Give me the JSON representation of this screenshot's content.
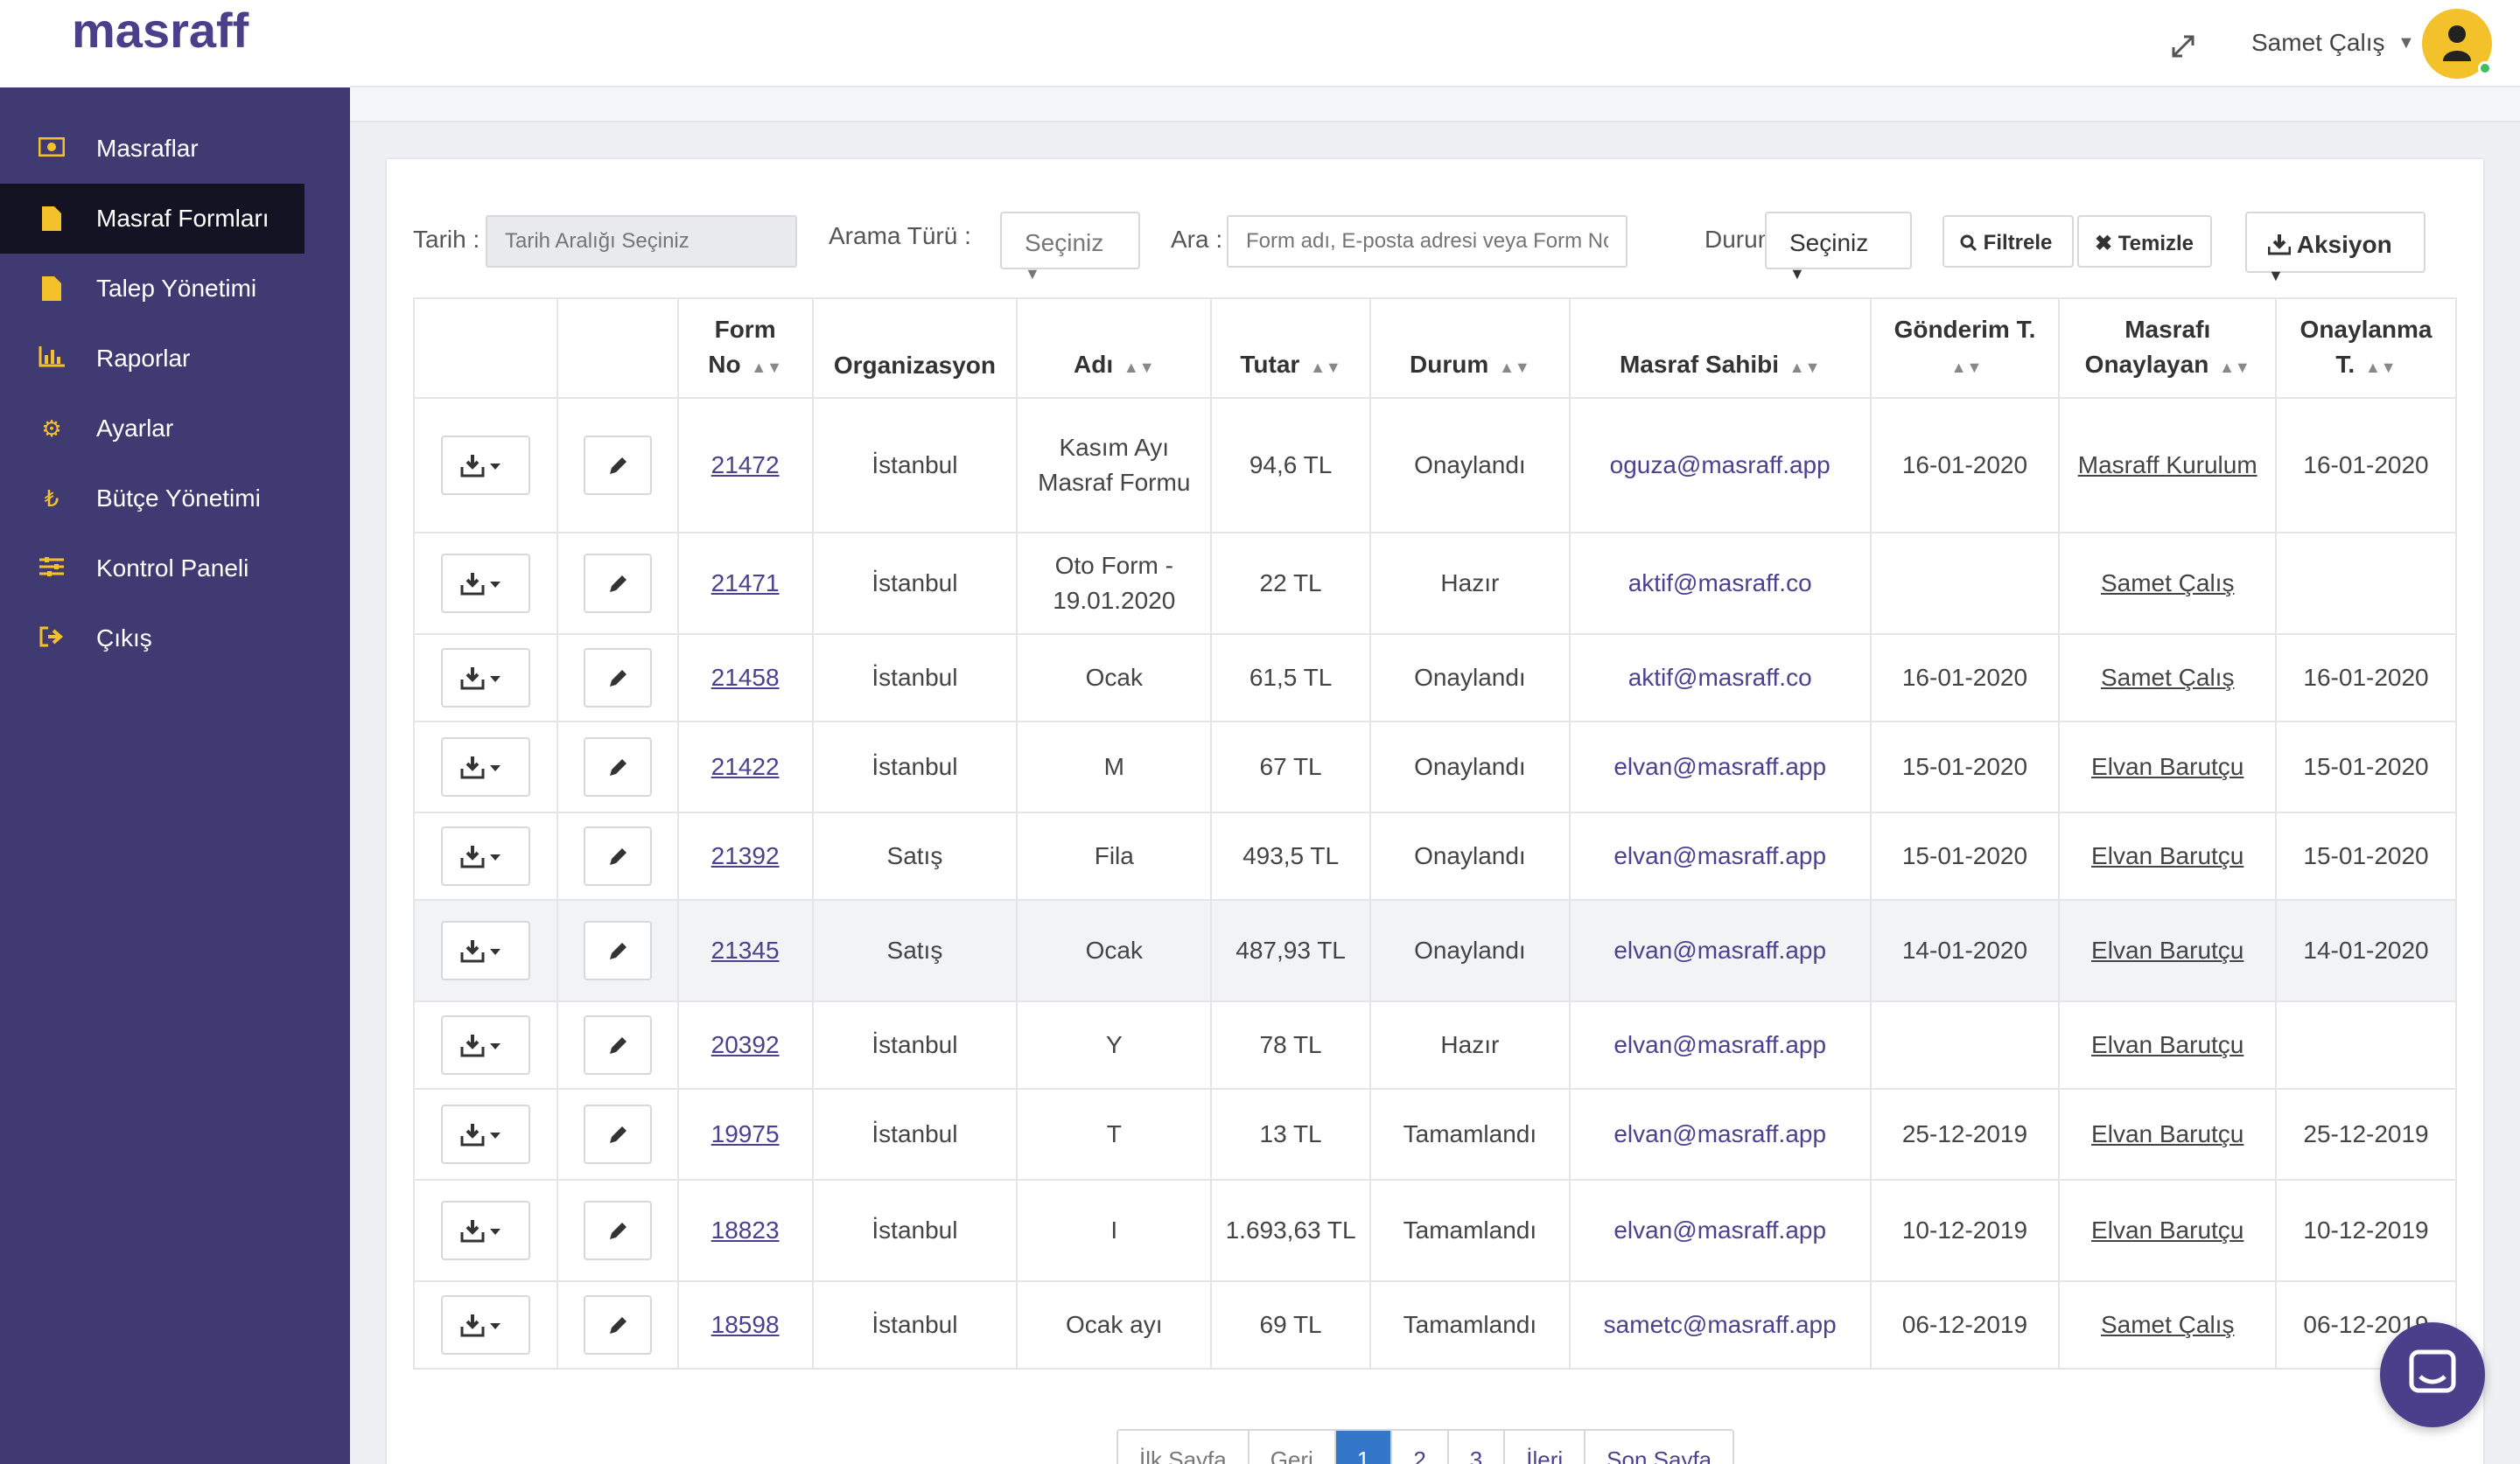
{
  "app": {
    "logo": "masraff"
  },
  "header": {
    "user_name": "Samet Çalış"
  },
  "sidebar": {
    "items": [
      {
        "label": "Masraflar",
        "icon": "money-icon"
      },
      {
        "label": "Masraf Formları",
        "icon": "file-icon",
        "active": true
      },
      {
        "label": "Talep Yönetimi",
        "icon": "file-icon"
      },
      {
        "label": "Raporlar",
        "icon": "bar-chart-icon"
      },
      {
        "label": "Ayarlar",
        "icon": "gear-icon"
      },
      {
        "label": "Bütçe Yönetimi",
        "icon": "lira-icon"
      },
      {
        "label": "Kontrol Paneli",
        "icon": "sliders-icon"
      },
      {
        "label": "Çıkış",
        "icon": "sign-out-icon"
      }
    ]
  },
  "filters": {
    "date_label": "Tarih :",
    "date_placeholder": "Tarih Aralığı Seçiniz",
    "search_type_label": "Arama Türü :",
    "search_type_value": "Seçiniz",
    "search_label": "Ara :",
    "search_placeholder": "Form adı, E-posta adresi veya Form No",
    "status_label": "Durumu :",
    "status_value": "Seçiniz",
    "filter_button": "Filtrele",
    "clear_button": "Temizle",
    "action_button": "Aksiyon"
  },
  "table": {
    "headers": {
      "form_no_1": "Form",
      "form_no_2": "No",
      "organization": "Organizasyon",
      "name": "Adı",
      "amount": "Tutar",
      "status": "Durum",
      "owner": "Masraf Sahibi",
      "sent_1": "Gönderim T.",
      "approver_1": "Masrafı",
      "approver_2": "Onaylayan",
      "approved_1": "Onaylanma",
      "approved_2": "T."
    },
    "rows": [
      {
        "form_no": "21472",
        "org": "İstanbul",
        "name": "Kasım Ayı Masraf Formu",
        "amount": "94,6 TL",
        "status": "Onaylandı",
        "owner": "oguza@masraff.app",
        "sent": "16-01-2020",
        "approver": "Masraff Kurulum",
        "approved": "16-01-2020"
      },
      {
        "form_no": "21471",
        "org": "İstanbul",
        "name": "Oto Form - 19.01.2020",
        "amount": "22 TL",
        "status": "Hazır",
        "owner": "aktif@masraff.co",
        "sent": "",
        "approver": "Samet Çalış",
        "approved": ""
      },
      {
        "form_no": "21458",
        "org": "İstanbul",
        "name": "Ocak",
        "amount": "61,5 TL",
        "status": "Onaylandı",
        "owner": "aktif@masraff.co",
        "sent": "16-01-2020",
        "approver": "Samet Çalış",
        "approved": "16-01-2020"
      },
      {
        "form_no": "21422",
        "org": "İstanbul",
        "name": "M",
        "amount": "67 TL",
        "status": "Onaylandı",
        "owner": "elvan@masraff.app",
        "sent": "15-01-2020",
        "approver": "Elvan Barutçu",
        "approved": "15-01-2020"
      },
      {
        "form_no": "21392",
        "org": "Satış",
        "name": "Fila",
        "amount": "493,5 TL",
        "status": "Onaylandı",
        "owner": "elvan@masraff.app",
        "sent": "15-01-2020",
        "approver": "Elvan Barutçu",
        "approved": "15-01-2020"
      },
      {
        "form_no": "21345",
        "org": "Satış",
        "name": "Ocak",
        "amount": "487,93 TL",
        "status": "Onaylandı",
        "owner": "elvan@masraff.app",
        "sent": "14-01-2020",
        "approver": "Elvan Barutçu",
        "approved": "14-01-2020"
      },
      {
        "form_no": "20392",
        "org": "İstanbul",
        "name": "Y",
        "amount": "78 TL",
        "status": "Hazır",
        "owner": "elvan@masraff.app",
        "sent": "",
        "approver": "Elvan Barutçu",
        "approved": ""
      },
      {
        "form_no": "19975",
        "org": "İstanbul",
        "name": "T",
        "amount": "13 TL",
        "status": "Tamamlandı",
        "owner": "elvan@masraff.app",
        "sent": "25-12-2019",
        "approver": "Elvan Barutçu",
        "approved": "25-12-2019"
      },
      {
        "form_no": "18823",
        "org": "İstanbul",
        "name": "I",
        "amount": "1.693,63 TL",
        "status": "Tamamlandı",
        "owner": "elvan@masraff.app",
        "sent": "10-12-2019",
        "approver": "Elvan Barutçu",
        "approved": "10-12-2019"
      },
      {
        "form_no": "18598",
        "org": "İstanbul",
        "name": "Ocak ayı",
        "amount": "69 TL",
        "status": "Tamamlandı",
        "owner": "sametc@masraff.app",
        "sent": "06-12-2019",
        "approver": "Samet Çalış",
        "approved": "06-12-2019"
      }
    ]
  },
  "pagination": {
    "first": "İlk Sayfa",
    "prev": "Geri",
    "pages": [
      "1",
      "2",
      "3"
    ],
    "next": "İleri",
    "last": "Son Sayfa"
  },
  "colors": {
    "sidebar_bg": "#403a73",
    "sidebar_active": "#141323",
    "accent": "#f3c22b",
    "link": "#4a4290",
    "page_active": "#3477c8"
  }
}
